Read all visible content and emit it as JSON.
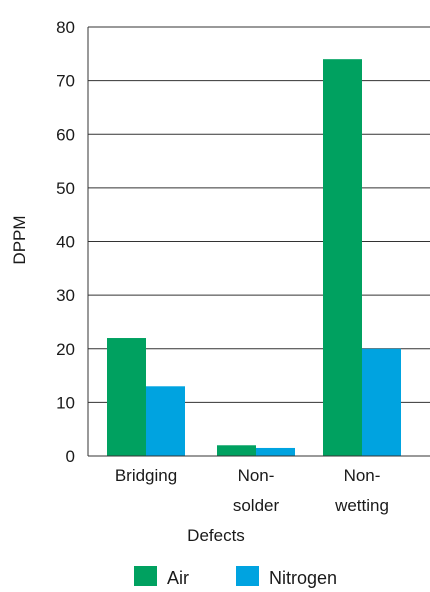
{
  "chart_data": {
    "type": "bar",
    "categories": [
      [
        "Bridging"
      ],
      [
        "Non-",
        "solder"
      ],
      [
        "Non-",
        "wetting"
      ]
    ],
    "series": [
      {
        "name": "Air",
        "values": [
          22,
          2,
          74
        ],
        "color": "#00a160"
      },
      {
        "name": "Nitrogen",
        "values": [
          13,
          1.5,
          20
        ],
        "color": "#00a3e0"
      }
    ],
    "xlabel": "Defects",
    "ylabel": "DPPM",
    "ylim": [
      0,
      80
    ],
    "yticks": [
      0,
      10,
      20,
      30,
      40,
      50,
      60,
      70,
      80
    ],
    "grid": true,
    "legend_position": "bottom"
  }
}
